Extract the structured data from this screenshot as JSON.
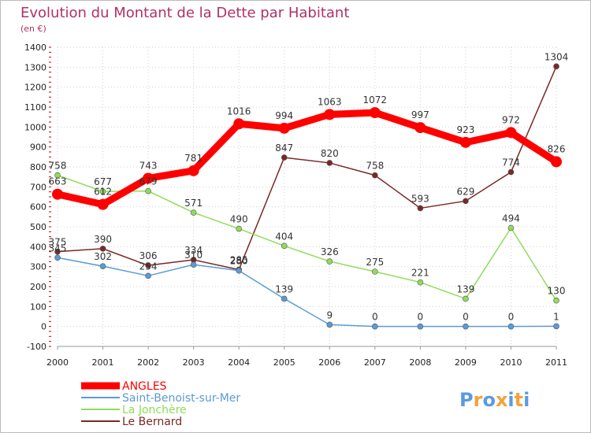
{
  "chart_data": {
    "type": "line",
    "title": "Evolution du Montant de la Dette par Habitant",
    "subtitle": "(en €)",
    "x": [
      "2000",
      "2001",
      "2002",
      "2003",
      "2004",
      "2005",
      "2006",
      "2007",
      "2008",
      "2009",
      "2010",
      "2011"
    ],
    "ylim": [
      -100,
      1400
    ],
    "yticks": [
      -100,
      0,
      100,
      200,
      300,
      400,
      500,
      600,
      700,
      800,
      900,
      1000,
      1100,
      1200,
      1300,
      1400
    ],
    "grid": true,
    "legend": "bottom-left",
    "series": [
      {
        "name": "ANGLES",
        "color": "#ff0000",
        "values": [
          663,
          612,
          743,
          781,
          1016,
          994,
          1063,
          1072,
          997,
          923,
          972,
          826
        ]
      },
      {
        "name": "Saint-Benoist-sur-Mer",
        "color": "#5b9bd5",
        "values": [
          345,
          302,
          254,
          310,
          280,
          139,
          9,
          0,
          0,
          0,
          0,
          1
        ]
      },
      {
        "name": "La Jonchère",
        "color": "#8fdc5a",
        "values": [
          758,
          677,
          679,
          571,
          490,
          404,
          326,
          275,
          221,
          139,
          494,
          130
        ]
      },
      {
        "name": "Le Bernard",
        "color": "#7b2727",
        "values": [
          375,
          390,
          306,
          334,
          285,
          847,
          820,
          758,
          593,
          629,
          774,
          1304
        ]
      }
    ]
  },
  "brand": {
    "letters": [
      "P",
      "r",
      "o",
      "x",
      "i",
      "t",
      "i"
    ],
    "colors": [
      "#5a9be0",
      "#f3a23a",
      "#5a9be0",
      "#f3a23a",
      "#5a9be0",
      "#f3a23a",
      "#5a9be0"
    ]
  }
}
